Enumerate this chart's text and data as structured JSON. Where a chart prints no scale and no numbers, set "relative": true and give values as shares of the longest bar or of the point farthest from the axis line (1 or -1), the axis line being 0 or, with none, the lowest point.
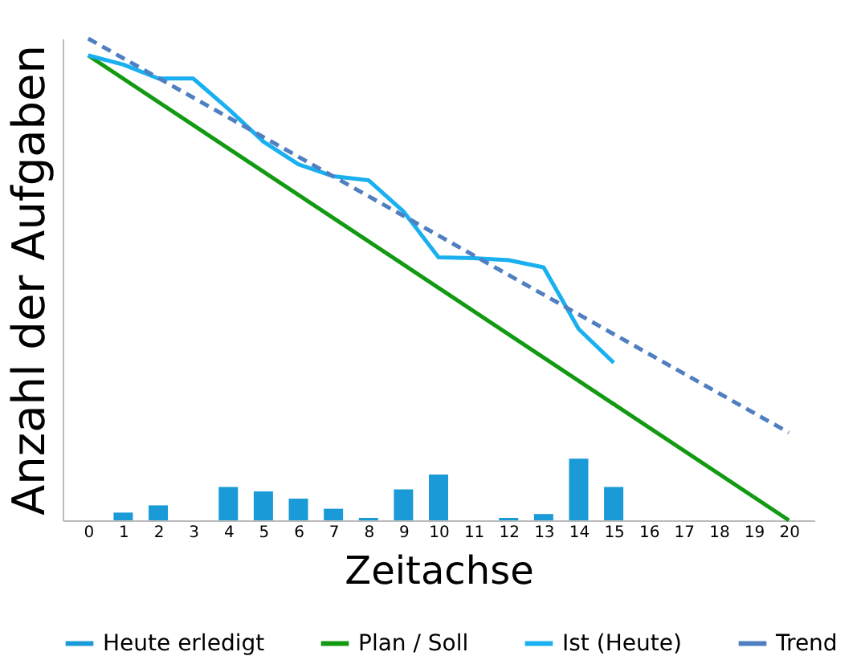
{
  "chart_data": {
    "type": "bar",
    "xlabel": "Zeitachse",
    "ylabel": "Anzahl der Aufgaben",
    "relative": true,
    "xlim": [
      -0.5,
      20.5
    ],
    "xticks": [
      0,
      1,
      2,
      3,
      4,
      5,
      6,
      7,
      8,
      9,
      10,
      11,
      12,
      13,
      14,
      15,
      16,
      17,
      18,
      19,
      20
    ],
    "legend": "bottom",
    "grid": false,
    "series": [
      {
        "name": "Heute erledigt",
        "color": "#1a9ad6",
        "x": [
          1,
          2,
          4,
          5,
          6,
          7,
          8,
          9,
          10,
          12,
          13,
          14,
          15
        ],
        "values": [
          0.016,
          0.031,
          0.069,
          0.06,
          0.045,
          0.024,
          0.005,
          0.064,
          0.095,
          0.005,
          0.013,
          0.128,
          0.069
        ]
      },
      {
        "name": "Plan / Soll",
        "type": "line",
        "color": "#129a12",
        "line_style": "solid",
        "x": [
          0,
          20
        ],
        "values": [
          0.965,
          0
        ]
      },
      {
        "name": "Ist (Heute)",
        "type": "line",
        "color": "#1ab0ef",
        "line_style": "solid",
        "x": [
          0,
          1,
          2,
          3,
          4,
          5,
          6,
          7,
          8,
          9,
          10,
          11,
          12,
          13,
          14,
          15
        ],
        "values": [
          0.965,
          0.946,
          0.917,
          0.917,
          0.854,
          0.786,
          0.739,
          0.714,
          0.706,
          0.641,
          0.546,
          0.544,
          0.54,
          0.525,
          0.397,
          0.327
        ]
      },
      {
        "name": "Trend",
        "type": "line",
        "color": "#4f7fc0",
        "line_style": "dashed",
        "x": [
          0,
          20
        ],
        "values": [
          1,
          0.182
        ]
      }
    ]
  }
}
